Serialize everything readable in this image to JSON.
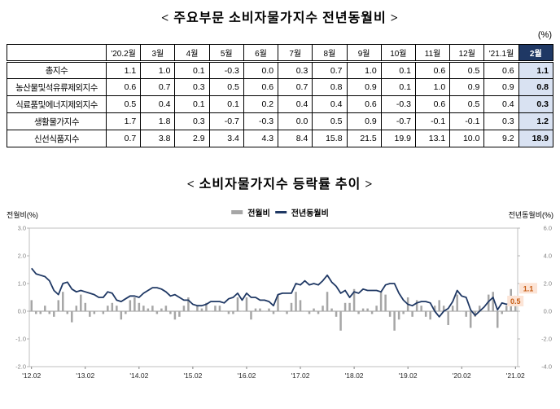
{
  "colors": {
    "bar": "#A6A6A6",
    "line": "#1F3864",
    "header_navy": "#1F3864",
    "highlight_col_bg": "#D9E2F2",
    "annotation_bg": "#FCE4D6",
    "annotation_text": "#C55A11"
  },
  "table_section": {
    "title": "< 주요부문 소비자물가지수 전년동월비 >",
    "unit_label": "(%)",
    "corner": "",
    "columns": [
      "'20.2월",
      "3월",
      "4월",
      "5월",
      "6월",
      "7월",
      "8월",
      "9월",
      "10월",
      "11월",
      "12월",
      "'21.1월",
      "2월"
    ],
    "rows": [
      {
        "label": "총지수",
        "values": [
          "1.1",
          "1.0",
          "0.1",
          "-0.3",
          "0.0",
          "0.3",
          "0.7",
          "1.0",
          "0.1",
          "0.6",
          "0.5",
          "0.6",
          "1.1"
        ]
      },
      {
        "label": "농산물및석유류제외지수",
        "values": [
          "0.6",
          "0.7",
          "0.3",
          "0.5",
          "0.6",
          "0.7",
          "0.8",
          "0.9",
          "0.1",
          "1.0",
          "0.9",
          "0.9",
          "0.8"
        ]
      },
      {
        "label": "식료품및에너지제외지수",
        "values": [
          "0.5",
          "0.4",
          "0.1",
          "0.1",
          "0.2",
          "0.4",
          "0.4",
          "0.6",
          "-0.3",
          "0.6",
          "0.5",
          "0.4",
          "0.3"
        ]
      },
      {
        "label": "생활물가지수",
        "values": [
          "1.7",
          "1.8",
          "0.3",
          "-0.7",
          "-0.3",
          "0.0",
          "0.5",
          "0.9",
          "-0.7",
          "-0.1",
          "-0.1",
          "0.3",
          "1.2"
        ]
      },
      {
        "label": "신선식품지수",
        "values": [
          "0.7",
          "3.8",
          "2.9",
          "3.4",
          "4.3",
          "8.4",
          "15.8",
          "21.5",
          "19.9",
          "13.1",
          "10.0",
          "9.2",
          "18.9"
        ]
      }
    ]
  },
  "chart_section": {
    "title": "< 소비자물가지수 등락률 추이 >",
    "legend": [
      {
        "label": "전월비",
        "type": "bar"
      },
      {
        "label": "전년동월비",
        "type": "line"
      }
    ]
  },
  "chart_data": {
    "type": "bar+line",
    "x_unit": "month",
    "x_range": [
      "2012.02",
      "2021.02"
    ],
    "x_ticks": [
      {
        "index": 0,
        "label": "'12.02"
      },
      {
        "index": 12,
        "label": "'13.02"
      },
      {
        "index": 24,
        "label": "'14.02"
      },
      {
        "index": 36,
        "label": "'15.02"
      },
      {
        "index": 48,
        "label": "'16.02"
      },
      {
        "index": 60,
        "label": "'17.02"
      },
      {
        "index": 72,
        "label": "'18.02"
      },
      {
        "index": 84,
        "label": "'19.02"
      },
      {
        "index": 96,
        "label": "'20.02"
      },
      {
        "index": 108,
        "label": "'21.02"
      }
    ],
    "left_axis": {
      "label": "전월비(%)",
      "min": -2,
      "max": 3,
      "ticks": [
        3.0,
        2.0,
        1.0,
        0.0,
        -1.0,
        -2.0
      ]
    },
    "right_axis": {
      "label": "전년동월비(%)",
      "min": -4,
      "max": 6,
      "ticks": [
        6.0,
        4.0,
        2.0,
        0.0,
        -2.0,
        -4.0
      ]
    },
    "series": [
      {
        "name": "전월비",
        "type": "bar",
        "axis": "left",
        "values": [
          0.4,
          -0.1,
          -0.1,
          0.2,
          -0.1,
          -0.2,
          0.4,
          0.7,
          -0.1,
          -0.4,
          0.2,
          0.6,
          0.3,
          -0.2,
          -0.1,
          0.0,
          -0.1,
          0.2,
          0.3,
          0.2,
          -0.3,
          -0.1,
          0.4,
          0.5,
          0.3,
          0.2,
          0.1,
          0.2,
          -0.1,
          0.1,
          0.2,
          -0.1,
          -0.3,
          -0.2,
          0.2,
          0.5,
          0.0,
          0.2,
          0.1,
          0.3,
          0.0,
          0.2,
          0.2,
          0.0,
          -0.1,
          -0.1,
          0.5,
          0.0,
          0.5,
          -0.3,
          0.1,
          0.1,
          0.0,
          0.1,
          -0.1,
          0.6,
          0.0,
          -0.1,
          0.3,
          0.7,
          0.4,
          0.0,
          -0.1,
          0.1,
          -0.1,
          0.2,
          0.7,
          0.1,
          -0.2,
          -0.7,
          0.3,
          0.3,
          0.8,
          -0.1,
          0.1,
          0.1,
          -0.1,
          0.2,
          0.7,
          0.6,
          -0.2,
          -0.7,
          -0.3,
          -0.1,
          0.5,
          -0.2,
          0.4,
          0.2,
          -0.2,
          -0.3,
          0.2,
          0.4,
          0.2,
          -0.5,
          0.2,
          0.6,
          0.0,
          -0.2,
          -0.6,
          -0.2,
          0.2,
          0.0,
          0.6,
          0.7,
          -0.6,
          -0.1,
          0.2,
          0.8,
          0.5
        ]
      },
      {
        "name": "전년동월비",
        "type": "line",
        "axis": "right",
        "values": [
          3.1,
          2.7,
          2.6,
          2.5,
          2.2,
          1.5,
          1.2,
          2.0,
          2.1,
          1.6,
          1.4,
          1.5,
          1.4,
          1.3,
          1.2,
          1.0,
          1.0,
          1.4,
          1.3,
          0.8,
          0.7,
          0.9,
          1.1,
          1.1,
          1.0,
          1.3,
          1.5,
          1.7,
          1.7,
          1.6,
          1.4,
          1.1,
          1.2,
          1.0,
          0.8,
          0.8,
          0.5,
          0.4,
          0.4,
          0.5,
          0.7,
          0.7,
          0.7,
          0.6,
          0.9,
          1.0,
          1.3,
          0.8,
          1.3,
          1.0,
          1.0,
          0.8,
          0.8,
          0.7,
          0.4,
          1.2,
          1.3,
          1.3,
          1.3,
          2.0,
          1.9,
          2.2,
          1.9,
          2.0,
          1.9,
          2.2,
          2.6,
          2.1,
          1.8,
          1.3,
          1.5,
          1.0,
          1.4,
          1.3,
          1.6,
          1.5,
          1.5,
          1.5,
          1.4,
          1.9,
          2.0,
          2.0,
          1.3,
          0.8,
          0.5,
          0.4,
          0.6,
          0.7,
          0.7,
          0.6,
          0.0,
          -0.4,
          0.0,
          0.2,
          0.7,
          1.5,
          1.1,
          1.0,
          0.1,
          -0.3,
          0.0,
          0.3,
          0.7,
          1.0,
          0.1,
          0.6,
          0.5,
          0.6,
          1.1
        ]
      }
    ],
    "annotations": [
      {
        "series": "전년동월비",
        "x": "2021.02",
        "value": 1.1,
        "text": "1.1"
      },
      {
        "series": "전월비",
        "x": "2021.02",
        "value": 0.5,
        "text": "0.5"
      }
    ]
  }
}
